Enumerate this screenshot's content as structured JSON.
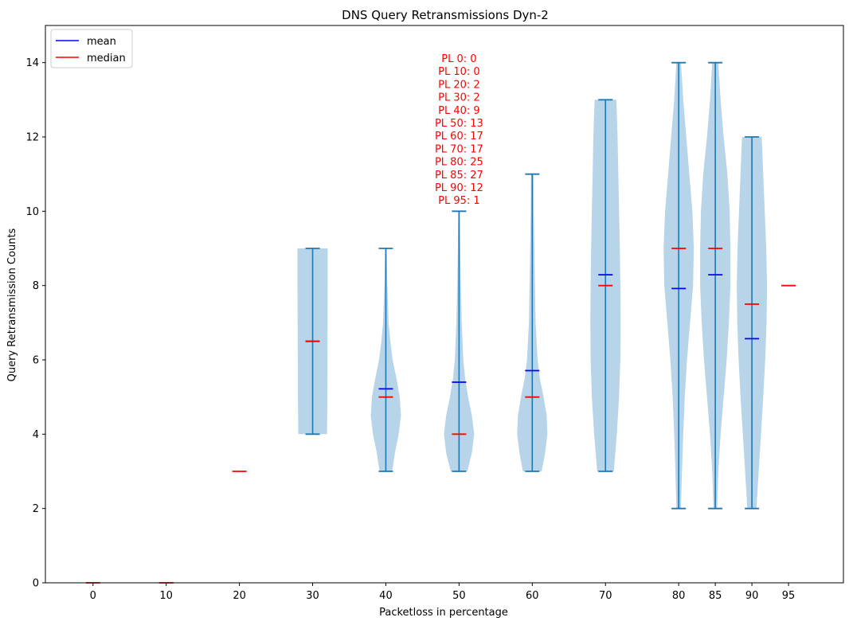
{
  "chart_data": {
    "type": "violin",
    "title": "DNS Query Retransmissions Dyn-2",
    "xlabel": "Packetloss in percentage",
    "ylabel": "Query Retransmission Counts",
    "ylim": [
      0,
      15
    ],
    "yticks": [
      0,
      2,
      4,
      6,
      8,
      10,
      12,
      14
    ],
    "grid": false,
    "legend_placement": "top-left",
    "legend": [
      {
        "label": "mean",
        "color": "#0000ff"
      },
      {
        "label": "median",
        "color": "#ff0000"
      }
    ],
    "colors": {
      "body": "#b8d4e8",
      "whisker": "#1f77b4",
      "mean": "#0000ff",
      "median": "#ff0000",
      "annotation": "#ff0000"
    },
    "groups": [
      {
        "label": "0",
        "x": 0,
        "min": null,
        "max": null,
        "mean": null,
        "median": 0,
        "profile": []
      },
      {
        "label": "10",
        "x": 10,
        "min": null,
        "max": null,
        "mean": null,
        "median": 0,
        "profile": []
      },
      {
        "label": "20",
        "x": 20,
        "min": null,
        "max": null,
        "mean": null,
        "median": 3,
        "profile": []
      },
      {
        "label": "30",
        "x": 30,
        "min": 4,
        "max": 9,
        "mean": 6.5,
        "median": 6.5,
        "profile": [
          [
            4,
            0.95
          ],
          [
            5,
            0.97
          ],
          [
            6,
            0.98
          ],
          [
            7,
            0.99
          ],
          [
            8,
            1.0
          ],
          [
            9,
            1.0
          ]
        ]
      },
      {
        "label": "40",
        "x": 40,
        "min": 3,
        "max": 9,
        "mean": 5.22,
        "median": 5,
        "profile": [
          [
            3,
            0.42
          ],
          [
            3.5,
            0.6
          ],
          [
            4,
            0.85
          ],
          [
            4.5,
            1.0
          ],
          [
            5,
            0.92
          ],
          [
            5.5,
            0.7
          ],
          [
            6,
            0.45
          ],
          [
            6.5,
            0.3
          ],
          [
            7,
            0.18
          ],
          [
            8,
            0.1
          ],
          [
            9,
            0.05
          ]
        ]
      },
      {
        "label": "50",
        "x": 50,
        "min": 3,
        "max": 10,
        "mean": 5.4,
        "median": 4,
        "profile": [
          [
            3,
            0.55
          ],
          [
            3.5,
            0.85
          ],
          [
            4,
            1.0
          ],
          [
            4.5,
            0.85
          ],
          [
            5,
            0.6
          ],
          [
            5.5,
            0.4
          ],
          [
            6,
            0.28
          ],
          [
            7,
            0.18
          ],
          [
            8,
            0.12
          ],
          [
            9,
            0.08
          ],
          [
            10,
            0.05
          ]
        ]
      },
      {
        "label": "60",
        "x": 60,
        "min": 3,
        "max": 11,
        "mean": 5.71,
        "median": 5,
        "profile": [
          [
            3,
            0.62
          ],
          [
            3.5,
            0.85
          ],
          [
            4,
            1.0
          ],
          [
            4.5,
            0.95
          ],
          [
            5,
            0.75
          ],
          [
            5.5,
            0.5
          ],
          [
            6,
            0.35
          ],
          [
            7,
            0.22
          ],
          [
            8,
            0.18
          ],
          [
            9,
            0.14
          ],
          [
            10,
            0.1
          ],
          [
            11,
            0.08
          ]
        ]
      },
      {
        "label": "70",
        "x": 70,
        "min": 3,
        "max": 13,
        "mean": 8.29,
        "median": 8,
        "profile": [
          [
            3,
            0.55
          ],
          [
            4,
            0.75
          ],
          [
            5,
            0.9
          ],
          [
            6,
            0.98
          ],
          [
            7,
            1.0
          ],
          [
            8,
            0.98
          ],
          [
            9,
            0.95
          ],
          [
            10,
            0.9
          ],
          [
            11,
            0.85
          ],
          [
            12,
            0.8
          ],
          [
            13,
            0.72
          ]
        ]
      },
      {
        "label": "80",
        "x": 80,
        "min": 2,
        "max": 14,
        "mean": 7.92,
        "median": 9,
        "profile": [
          [
            2,
            0.15
          ],
          [
            3,
            0.22
          ],
          [
            4,
            0.3
          ],
          [
            5,
            0.4
          ],
          [
            6,
            0.55
          ],
          [
            7,
            0.75
          ],
          [
            8,
            0.95
          ],
          [
            9,
            1.0
          ],
          [
            10,
            0.9
          ],
          [
            11,
            0.7
          ],
          [
            12,
            0.5
          ],
          [
            13,
            0.3
          ],
          [
            14,
            0.15
          ]
        ]
      },
      {
        "label": "85",
        "x": 85,
        "min": 2,
        "max": 14,
        "mean": 8.29,
        "median": 9,
        "profile": [
          [
            2,
            0.12
          ],
          [
            3,
            0.2
          ],
          [
            4,
            0.35
          ],
          [
            5,
            0.55
          ],
          [
            6,
            0.75
          ],
          [
            7,
            0.9
          ],
          [
            8,
            1.0
          ],
          [
            9,
            1.0
          ],
          [
            10,
            0.95
          ],
          [
            11,
            0.8
          ],
          [
            12,
            0.55
          ],
          [
            13,
            0.35
          ],
          [
            14,
            0.2
          ]
        ]
      },
      {
        "label": "90",
        "x": 90,
        "min": 2,
        "max": 12,
        "mean": 6.57,
        "median": 7.5,
        "profile": [
          [
            2,
            0.3
          ],
          [
            3,
            0.45
          ],
          [
            4,
            0.6
          ],
          [
            5,
            0.75
          ],
          [
            6,
            0.88
          ],
          [
            7,
            0.97
          ],
          [
            8,
            1.0
          ],
          [
            9,
            0.95
          ],
          [
            10,
            0.85
          ],
          [
            11,
            0.75
          ],
          [
            12,
            0.65
          ]
        ]
      },
      {
        "label": "95",
        "x": 95,
        "min": null,
        "max": null,
        "mean": null,
        "median": 8,
        "profile": []
      }
    ],
    "annotations": [
      "PL 0: 0",
      "PL 10: 0",
      "PL 20: 2",
      "PL 30: 2",
      "PL 40: 9",
      "PL 50: 13",
      "PL 60: 17",
      "PL 70: 17",
      "PL 80: 25",
      "PL 85: 27",
      "PL 90: 12",
      "PL 95: 1"
    ]
  }
}
